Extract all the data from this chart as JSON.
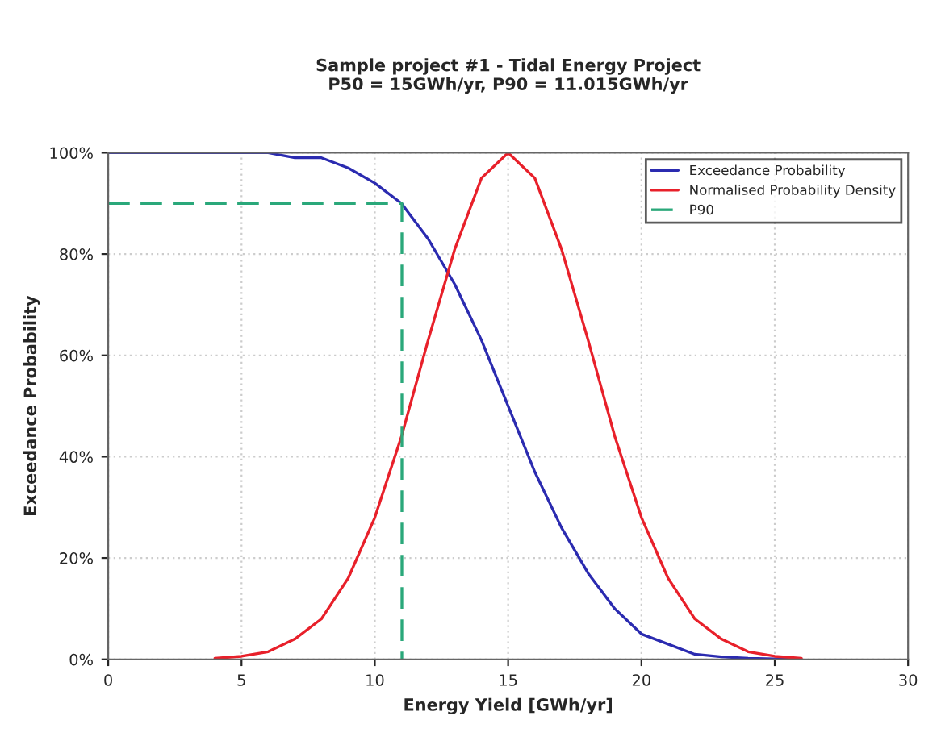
{
  "chart_data": {
    "type": "line",
    "title": "Sample project #1 - Tidal Energy Project\nP50 = 15GWh/yr, P90 = 11.015GWh/yr",
    "xlabel": "Energy Yield [GWh/yr]",
    "ylabel": "Exceedance Probability",
    "xlim": [
      0,
      30
    ],
    "xticks": [
      0,
      5,
      10,
      15,
      20,
      25,
      30
    ],
    "ylim": [
      0,
      100
    ],
    "yticks": [
      {
        "value": 0,
        "label": "0%"
      },
      {
        "value": 20,
        "label": "20%"
      },
      {
        "value": 40,
        "label": "40%"
      },
      {
        "value": 60,
        "label": "60%"
      },
      {
        "value": 80,
        "label": "80%"
      },
      {
        "value": 100,
        "label": "100%"
      }
    ],
    "grid": true,
    "legend": "top right",
    "marker": "none",
    "series": [
      {
        "name": "Exceedance Probability",
        "color": "#2b2bb0",
        "line_style": "solid",
        "x": [
          0,
          2,
          4,
          5,
          6,
          7,
          8,
          9,
          10,
          11,
          12,
          13,
          14,
          15,
          16,
          17,
          18,
          19,
          20,
          21,
          22,
          23,
          24,
          25,
          26
        ],
        "values": [
          100,
          100,
          100,
          100,
          100,
          99,
          99,
          97,
          94,
          90,
          83,
          74,
          63,
          50,
          37,
          26,
          17,
          10,
          5,
          3,
          1,
          0.5,
          0.2,
          0.1,
          0
        ]
      },
      {
        "name": "Normalised Probability Density",
        "color": "#e8202a",
        "line_style": "solid",
        "x": [
          4,
          5,
          6,
          7,
          8,
          9,
          10,
          11,
          12,
          13,
          14,
          15,
          16,
          17,
          18,
          19,
          20,
          21,
          22,
          23,
          24,
          25,
          26
        ],
        "values": [
          0.2,
          0.6,
          1.5,
          4,
          8,
          16,
          28,
          44,
          63,
          81,
          95,
          100,
          95,
          81,
          63,
          44,
          28,
          16,
          8,
          4,
          1.5,
          0.6,
          0.2
        ]
      },
      {
        "name": "P90",
        "color": "#2aa87a",
        "line_style": "dashed",
        "x": [
          0,
          11.015,
          11.015
        ],
        "values": [
          90,
          90,
          0
        ]
      }
    ]
  }
}
